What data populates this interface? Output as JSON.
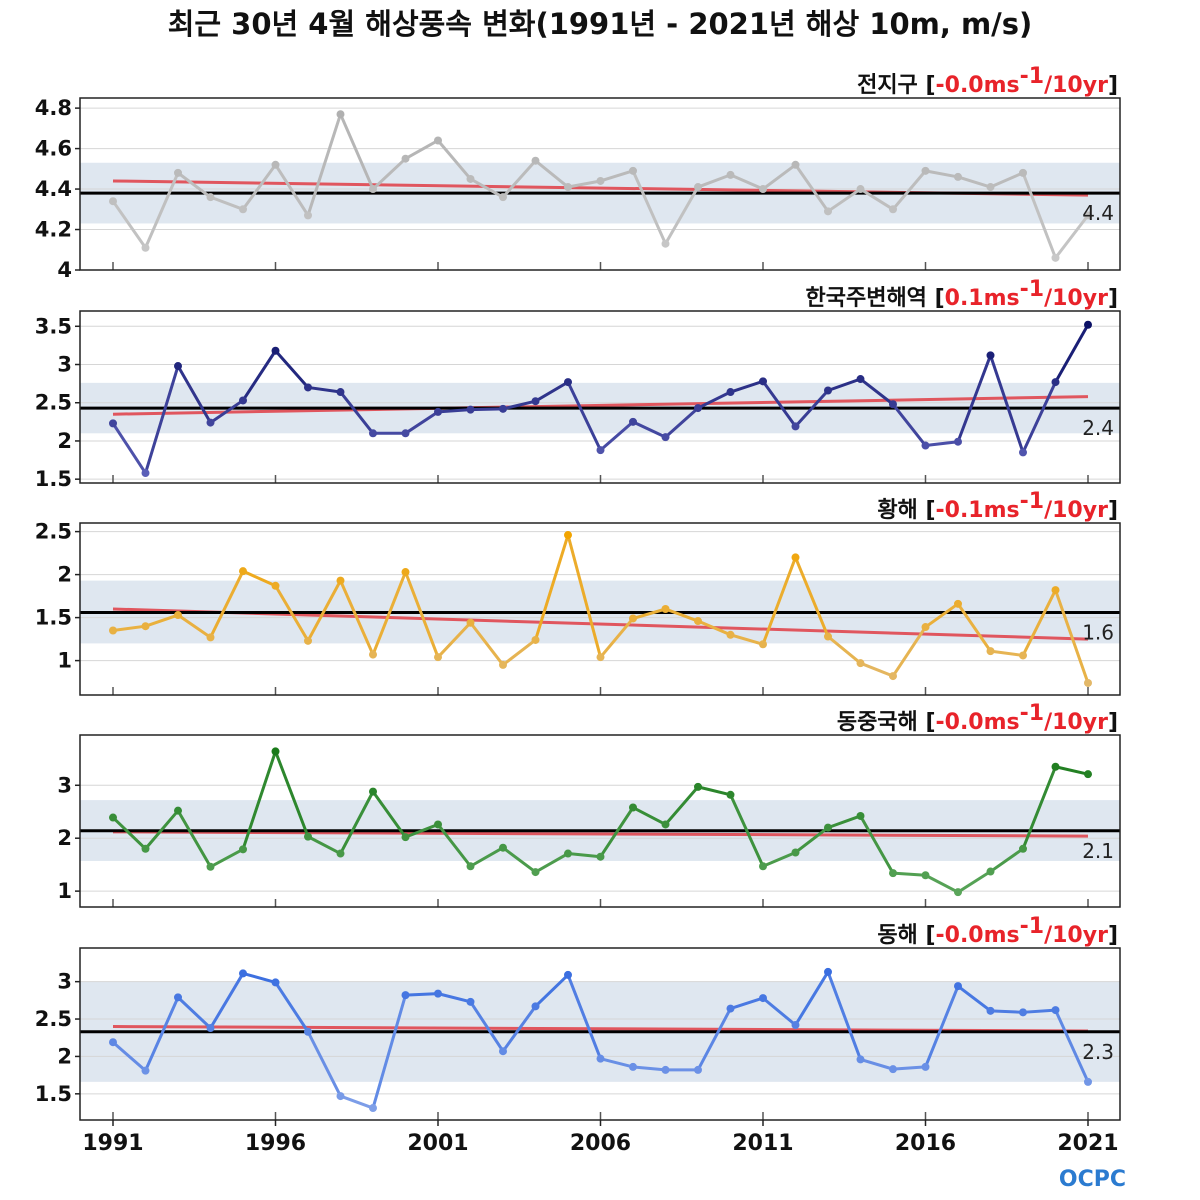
{
  "title": "최근 30년 4월 해상풍속 변화(1991년 - 2021년 해상 10m, m/s)",
  "logo": "OCPC",
  "chart_data": {
    "type": "line",
    "x": [
      1991,
      1992,
      1993,
      1994,
      1995,
      1996,
      1997,
      1998,
      1999,
      2000,
      2001,
      2002,
      2003,
      2004,
      2005,
      2006,
      2007,
      2008,
      2009,
      2010,
      2011,
      2012,
      2013,
      2014,
      2015,
      2016,
      2017,
      2018,
      2019,
      2020,
      2021
    ],
    "xticks": [
      1991,
      1996,
      2001,
      2006,
      2011,
      2016,
      2021
    ],
    "xlabels": [
      "1991",
      "1996",
      "2001",
      "2006",
      "2011",
      "2016",
      "2021"
    ],
    "panels": [
      {
        "name": "전지구",
        "trend_value": "-0.0",
        "trend_unit": "ms",
        "trend_exp": "-1",
        "trend_per": "/10yr",
        "mean_label": "4.4",
        "mean": 4.38,
        "band": [
          4.23,
          4.53
        ],
        "trend_start": 4.44,
        "trend_end": 4.37,
        "ylim": [
          4.0,
          4.85
        ],
        "yticks": [
          4.0,
          4.2,
          4.4,
          4.6,
          4.8
        ],
        "ytick_labels": [
          "4",
          "4.2",
          "4.4",
          "4.6",
          "4.8"
        ],
        "color_dark": "#b0b0b0",
        "color_light": "#c8c8c8",
        "values": [
          4.34,
          4.11,
          4.48,
          4.36,
          4.3,
          4.52,
          4.27,
          4.77,
          4.4,
          4.55,
          4.64,
          4.45,
          4.36,
          4.54,
          4.41,
          4.44,
          4.49,
          4.13,
          4.41,
          4.47,
          4.4,
          4.52,
          4.29,
          4.4,
          4.3,
          4.49,
          4.46,
          4.41,
          4.48,
          4.06,
          4.27
        ]
      },
      {
        "name": "한국주변해역",
        "trend_value": "0.1",
        "trend_unit": "ms",
        "trend_exp": "-1",
        "trend_per": "/10yr",
        "mean_label": "2.4",
        "mean": 2.43,
        "band": [
          2.1,
          2.76
        ],
        "trend_start": 2.35,
        "trend_end": 2.58,
        "ylim": [
          1.45,
          3.7
        ],
        "yticks": [
          1.5,
          2.0,
          2.5,
          3.0,
          3.5
        ],
        "ytick_labels": [
          "1.5",
          "2",
          "2.5",
          "3",
          "3.5"
        ],
        "color_dark": "#0b1066",
        "color_light": "#5b5fb8",
        "values": [
          2.23,
          1.58,
          2.98,
          2.24,
          2.53,
          3.18,
          2.7,
          2.64,
          2.1,
          2.1,
          2.38,
          2.41,
          2.42,
          2.52,
          2.77,
          1.88,
          2.25,
          2.05,
          2.43,
          2.64,
          2.78,
          2.19,
          2.66,
          2.81,
          2.48,
          1.94,
          1.99,
          3.12,
          1.85,
          2.77,
          3.52
        ]
      },
      {
        "name": "황해",
        "trend_value": "-0.1",
        "trend_unit": "ms",
        "trend_exp": "-1",
        "trend_per": "/10yr",
        "mean_label": "1.6",
        "mean": 1.56,
        "band": [
          1.2,
          1.93
        ],
        "trend_start": 1.6,
        "trend_end": 1.25,
        "ylim": [
          0.6,
          2.6
        ],
        "yticks": [
          1.0,
          1.5,
          2.0,
          2.5
        ],
        "ytick_labels": [
          "1",
          "1.5",
          "2",
          "2.5"
        ],
        "color_dark": "#f2a400",
        "color_light": "#e3b868",
        "values": [
          1.35,
          1.4,
          1.53,
          1.27,
          2.04,
          1.87,
          1.23,
          1.93,
          1.07,
          2.03,
          1.04,
          1.44,
          0.95,
          1.24,
          2.46,
          1.04,
          1.49,
          1.6,
          1.46,
          1.3,
          1.19,
          2.2,
          1.28,
          0.97,
          0.82,
          1.39,
          1.66,
          1.11,
          1.06,
          1.82,
          0.74
        ]
      },
      {
        "name": "동중국해",
        "trend_value": "-0.0",
        "trend_unit": "ms",
        "trend_exp": "-1",
        "trend_per": "/10yr",
        "mean_label": "2.1",
        "mean": 2.14,
        "band": [
          1.57,
          2.72
        ],
        "trend_start": 2.12,
        "trend_end": 2.04,
        "ylim": [
          0.7,
          3.95
        ],
        "yticks": [
          1.0,
          2.0,
          3.0
        ],
        "ytick_labels": [
          "1",
          "2",
          "3"
        ],
        "color_dark": "#1a7a1a",
        "color_light": "#5aa55a",
        "values": [
          2.39,
          1.8,
          2.52,
          1.46,
          1.79,
          3.64,
          2.03,
          1.71,
          2.88,
          2.02,
          2.26,
          1.47,
          1.82,
          1.36,
          1.71,
          1.65,
          2.58,
          2.26,
          2.97,
          2.82,
          1.47,
          1.73,
          2.2,
          2.42,
          1.34,
          1.3,
          0.98,
          1.37,
          1.8,
          3.35,
          3.21
        ]
      },
      {
        "name": "동해",
        "trend_value": "-0.0",
        "trend_unit": "ms",
        "trend_exp": "-1",
        "trend_per": "/10yr",
        "mean_label": "2.3",
        "mean": 2.33,
        "band": [
          1.66,
          3.0
        ],
        "trend_start": 2.4,
        "trend_end": 2.34,
        "ylim": [
          1.15,
          3.45
        ],
        "yticks": [
          1.5,
          2.0,
          2.5,
          3.0
        ],
        "ytick_labels": [
          "1.5",
          "2",
          "2.5",
          "3"
        ],
        "color_dark": "#3a6ee0",
        "color_light": "#7f9fe8",
        "values": [
          2.19,
          1.81,
          2.79,
          2.38,
          3.11,
          2.99,
          2.33,
          1.47,
          1.31,
          2.82,
          2.84,
          2.73,
          2.07,
          2.67,
          3.09,
          1.97,
          1.86,
          1.82,
          1.82,
          2.64,
          2.78,
          2.42,
          3.13,
          1.96,
          1.83,
          1.86,
          2.94,
          2.61,
          2.59,
          2.62,
          1.66
        ]
      }
    ]
  }
}
